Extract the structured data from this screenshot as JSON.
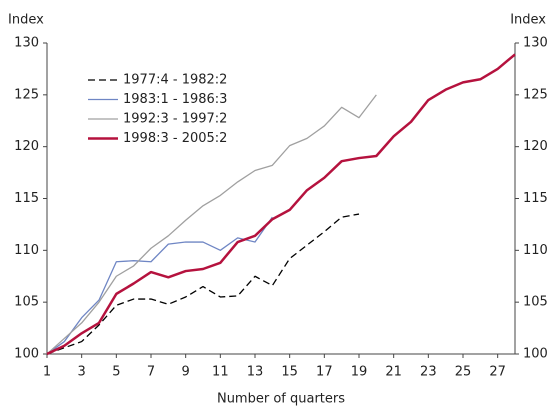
{
  "chart_data": {
    "type": "line",
    "ylabel": "Index",
    "y2label": "Index",
    "xlabel": "Number of quarters",
    "x": [
      1,
      2,
      3,
      4,
      5,
      6,
      7,
      8,
      9,
      10,
      11,
      12,
      13,
      14,
      15,
      16,
      17,
      18,
      19,
      20,
      21,
      22,
      23,
      24,
      25,
      26,
      27,
      28
    ],
    "xlim": [
      1,
      28
    ],
    "xticks": [
      1,
      3,
      5,
      7,
      9,
      11,
      13,
      15,
      17,
      19,
      21,
      23,
      25,
      27
    ],
    "ylim": [
      100,
      130
    ],
    "yticks": [
      100,
      105,
      110,
      115,
      120,
      125,
      130
    ],
    "y2lim": [
      100,
      130
    ],
    "y2ticks": [
      100,
      105,
      110,
      115,
      120,
      125,
      130
    ],
    "legend": "upper left",
    "series": [
      {
        "name": "1977:4 - 1982:2",
        "color": "#000000",
        "dash": "dashed",
        "values": [
          100,
          100.6,
          101.2,
          102.8,
          104.7,
          105.3,
          105.3,
          104.8,
          105.5,
          106.5,
          105.5,
          105.6,
          107.5,
          106.6,
          109.2,
          110.5,
          111.8,
          113.2,
          113.5,
          null,
          null,
          null,
          null,
          null,
          null,
          null,
          null,
          null
        ]
      },
      {
        "name": "1983:1 - 1986:3",
        "color": "#6f86c4",
        "values": [
          100,
          101.2,
          103.5,
          105.2,
          108.9,
          109.0,
          108.9,
          110.6,
          110.8,
          110.8,
          110.0,
          111.2,
          110.8,
          113.2,
          null,
          null,
          null,
          null,
          null,
          null,
          null,
          null,
          null,
          null,
          null,
          null,
          null,
          null
        ]
      },
      {
        "name": "1992:3 - 1997:2",
        "color": "#a0a0a0",
        "values": [
          100,
          101.5,
          103.0,
          105.0,
          107.5,
          108.5,
          110.2,
          111.4,
          112.9,
          114.3,
          115.3,
          116.6,
          117.7,
          118.2,
          120.1,
          120.8,
          122.0,
          123.8,
          122.8,
          125.0,
          null,
          null,
          null,
          null,
          null,
          null,
          null,
          null
        ]
      },
      {
        "name": "1998:3 - 2005:2",
        "color": "#b5123e",
        "width": 2.5,
        "values": [
          100,
          100.8,
          102.0,
          103.0,
          105.8,
          106.8,
          107.9,
          107.4,
          108.0,
          108.2,
          108.8,
          110.8,
          111.4,
          113.0,
          113.9,
          115.8,
          117.0,
          118.6,
          118.9,
          119.1,
          121.0,
          122.4,
          124.5,
          125.5,
          126.2,
          126.5,
          127.5,
          128.9
        ]
      }
    ]
  }
}
